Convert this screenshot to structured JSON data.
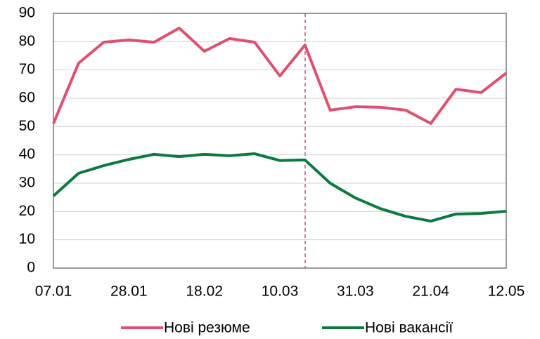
{
  "chart_data": {
    "type": "line",
    "categories": [
      "07.01",
      null,
      null,
      "28.01",
      null,
      null,
      "18.02",
      null,
      null,
      "10.03",
      null,
      null,
      "31.03",
      null,
      null,
      "21.04",
      null,
      null,
      "12.05"
    ],
    "series": [
      {
        "name": "Нові резюме",
        "color": "#e0506e",
        "values": [
          51.1,
          72.4,
          79.8,
          80.6,
          79.8,
          84.8,
          76.6,
          81.1,
          79.8,
          67.9,
          78.8,
          55.8,
          57.0,
          56.8,
          55.8,
          51.1,
          63.2,
          62.0,
          68.9
        ]
      },
      {
        "name": "Нові вакансії",
        "color": "#0a7a3e",
        "values": [
          25.5,
          33.5,
          36.2,
          38.4,
          40.2,
          39.4,
          40.2,
          39.7,
          40.4,
          38.0,
          38.2,
          30.0,
          24.8,
          21.0,
          18.3,
          16.6,
          19.1,
          19.3,
          20.1
        ]
      }
    ],
    "ylim": [
      0,
      90
    ],
    "yticks": [
      0,
      10,
      20,
      30,
      40,
      50,
      60,
      70,
      80,
      90
    ],
    "grid": true,
    "legend": "bottom"
  }
}
